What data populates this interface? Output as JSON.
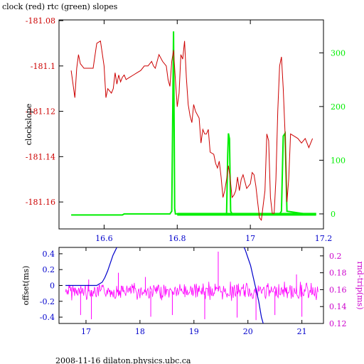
{
  "chart_data": [
    {
      "type": "line",
      "title": "clock (red) rtc (green) slopes",
      "ylabel": "clockslope",
      "xlim": [
        16.5,
        17.2
      ],
      "ylim": [
        -181.17,
        -181.08
      ],
      "y2lim": [
        -20,
        360
      ],
      "x_ticks": [
        16.6,
        16.8,
        17,
        17.2
      ],
      "x_tick_labels": [
        "16.6",
        "16.8",
        "17",
        "17.2"
      ],
      "y_ticks": [
        -181.08,
        -181.1,
        -181.12,
        -181.14,
        -181.16
      ],
      "y_tick_labels": [
        "-181.08",
        "-181.1",
        "-181.12",
        "-181.14",
        "-181.16"
      ],
      "y2_ticks": [
        0,
        100,
        200,
        300
      ],
      "y2_tick_labels": [
        "0",
        "100",
        "200",
        "300"
      ],
      "colors": {
        "clock": "#cc0000",
        "rtc": "#00ee00",
        "axis": "#000000"
      },
      "series": [
        {
          "axis": "left",
          "x": [
            16.51,
            16.515,
            16.52,
            16.525,
            16.53,
            16.535,
            16.54,
            16.545,
            16.55,
            16.56,
            16.57,
            16.58,
            16.59,
            16.6,
            16.605,
            16.61,
            16.62,
            16.625,
            16.63,
            16.635,
            16.64,
            16.645,
            16.65,
            16.655,
            16.66,
            16.67,
            16.68,
            16.69,
            16.7,
            16.71,
            16.72,
            16.73,
            16.735,
            16.74,
            16.75,
            16.76,
            16.77,
            16.775,
            16.78,
            16.785,
            16.79,
            16.795,
            16.8,
            16.805,
            16.81,
            16.815,
            16.82,
            16.825,
            16.83,
            16.835,
            16.84,
            16.845,
            16.85,
            16.86,
            16.865,
            16.87,
            16.875,
            16.88,
            16.885,
            16.89,
            16.9,
            16.905,
            16.91,
            16.915,
            16.92,
            16.925,
            16.93,
            16.935,
            16.94,
            16.945,
            16.95,
            16.955,
            16.96,
            16.965,
            16.97,
            16.975,
            16.98,
            16.99,
            17.0,
            17.005,
            17.01,
            17.015,
            17.02,
            17.025,
            17.03,
            17.04,
            17.045,
            17.05,
            17.055,
            17.06,
            17.065,
            17.07,
            17.075,
            17.08,
            17.085,
            17.09,
            17.095,
            17.1,
            17.105,
            17.11,
            17.12,
            17.13,
            17.14,
            17.15,
            17.16,
            17.17
          ],
          "y": [
            -181.102,
            -181.108,
            -181.114,
            -181.101,
            -181.095,
            -181.099,
            -181.1,
            -181.101,
            -181.101,
            -181.101,
            -181.101,
            -181.09,
            -181.089,
            -181.1,
            -181.114,
            -181.11,
            -181.112,
            -181.11,
            -181.103,
            -181.108,
            -181.104,
            -181.107,
            -181.105,
            -181.104,
            -181.106,
            -181.105,
            -181.104,
            -181.103,
            -181.102,
            -181.1,
            -181.1,
            -181.098,
            -181.1,
            -181.101,
            -181.095,
            -181.098,
            -181.1,
            -181.106,
            -181.109,
            -181.098,
            -181.093,
            -181.106,
            -181.118,
            -181.112,
            -181.095,
            -181.097,
            -181.089,
            -181.105,
            -181.117,
            -181.122,
            -181.125,
            -181.117,
            -181.12,
            -181.123,
            -181.134,
            -181.128,
            -181.13,
            -181.13,
            -181.128,
            -181.138,
            -181.139,
            -181.143,
            -181.145,
            -181.142,
            -181.149,
            -181.158,
            -181.155,
            -181.15,
            -181.144,
            -181.15,
            -181.158,
            -181.157,
            -181.155,
            -181.149,
            -181.155,
            -181.15,
            -181.148,
            -181.154,
            -181.152,
            -181.147,
            -181.148,
            -181.153,
            -181.16,
            -181.167,
            -181.168,
            -181.155,
            -181.13,
            -181.133,
            -181.158,
            -181.165,
            -181.165,
            -181.15,
            -181.12,
            -181.1,
            -181.096,
            -181.11,
            -181.13,
            -181.16,
            -181.15,
            -181.13,
            -181.131,
            -181.132,
            -181.134,
            -181.132,
            -181.136,
            -181.132
          ]
        },
        {
          "axis": "right",
          "x": [
            16.51,
            16.6,
            16.65,
            16.655,
            16.66,
            16.7,
            16.78,
            16.785,
            16.79,
            16.793,
            16.795,
            16.8,
            16.85,
            16.9,
            16.935,
            16.938,
            16.94,
            16.943,
            16.946,
            16.95,
            17.0,
            17.05,
            17.08,
            17.085,
            17.09,
            17.095,
            17.1,
            17.15,
            17.18
          ],
          "y": [
            -2,
            -2,
            -2,
            0,
            0,
            0,
            0,
            5,
            340,
            10,
            0,
            0,
            0,
            0,
            0,
            110,
            150,
            140,
            5,
            0,
            0,
            0,
            0,
            5,
            145,
            150,
            5,
            0,
            0
          ]
        }
      ]
    },
    {
      "type": "line",
      "ylabel": "offset(ms)",
      "y2label": "rnd-trip(ms)",
      "xlim": [
        16.5,
        21.4
      ],
      "ylim": [
        -0.48,
        0.48
      ],
      "y2lim": [
        0.12,
        0.21
      ],
      "x_ticks": [
        17,
        18,
        19,
        20,
        21
      ],
      "x_tick_labels": [
        "17",
        "18",
        "19",
        "20",
        "21"
      ],
      "y_ticks": [
        0.4,
        0.2,
        0,
        -0.2,
        -0.4
      ],
      "y_tick_labels": [
        "0.4",
        "0.2",
        "0",
        "-0.2",
        "-0.4"
      ],
      "y2_ticks": [
        0.2,
        0.18,
        0.16,
        0.14,
        0.12
      ],
      "y2_tick_labels": [
        "0.2",
        "0.18",
        "0.16",
        "0.14",
        "0.12"
      ],
      "colors": {
        "offset": "#0000cc",
        "rndtrip": "#ff00ff",
        "axis": "#000000",
        "y2axis": "#cc00cc"
      },
      "series": [
        {
          "axis": "left",
          "x": [
            16.62,
            16.7,
            16.8,
            16.9,
            17.0,
            17.1,
            17.2,
            17.3,
            17.35,
            17.4,
            17.45,
            17.5,
            17.55,
            17.6,
            19.9,
            19.95,
            20.0,
            20.05,
            20.1,
            20.2,
            20.25,
            20.3
          ],
          "y": [
            0,
            0,
            0,
            0,
            0,
            0,
            0,
            0.04,
            0.1,
            0.18,
            0.28,
            0.38,
            0.45,
            0.52,
            0.52,
            0.45,
            0.35,
            0.25,
            0.1,
            -0.2,
            -0.4,
            -0.52
          ]
        },
        {
          "axis": "right",
          "baseline": 0.158,
          "x_range": [
            16.62,
            21.3
          ],
          "spikes_up": [
            [
              19.45,
              0.205
            ],
            [
              17.6,
              0.18
            ],
            [
              18.1,
              0.175
            ],
            [
              20.9,
              0.178
            ],
            [
              17.05,
              0.172
            ]
          ],
          "spikes_down": [
            [
              17.1,
              0.125
            ],
            [
              18.2,
              0.128
            ],
            [
              18.6,
              0.13
            ],
            [
              19.2,
              0.125
            ],
            [
              19.8,
              0.127
            ],
            [
              20.15,
              0.124
            ],
            [
              20.5,
              0.13
            ],
            [
              21.0,
              0.128
            ],
            [
              16.9,
              0.13
            ]
          ]
        }
      ]
    }
  ],
  "footer": "2008-11-16 dilaton.physics.ubc.ca"
}
